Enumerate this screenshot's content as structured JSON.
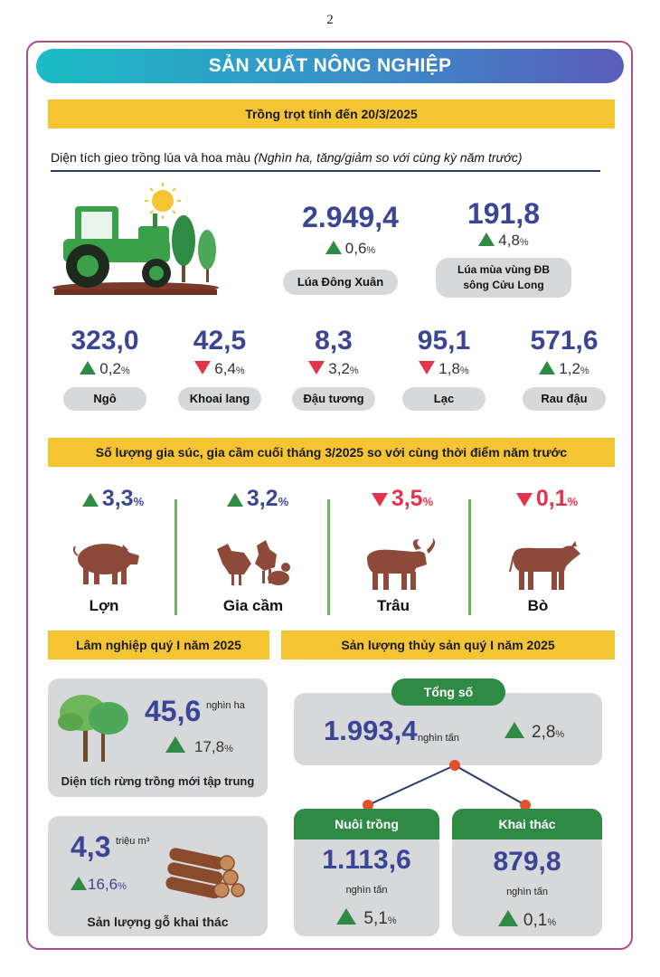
{
  "page_number": "2",
  "banner_title": "SẢN XUẤT NÔNG NGHIỆP",
  "crops": {
    "header": "Trồng trọt tính đến 20/3/2025",
    "subtitle_main": "Diện tích gieo trồng lúa và hoa màu",
    "subtitle_note": "(Nghìn ha, tăng/giảm so với cùng kỳ năm trước)",
    "rice_winter_spring": {
      "value": "2.949,4",
      "change": "0,6",
      "direction": "up",
      "label": "Lúa Đông Xuân"
    },
    "rice_mekong": {
      "value": "191,8",
      "change": "4,8",
      "direction": "up",
      "label_line1": "Lúa mùa vùng ĐB",
      "label_line2": "sông Cửu Long"
    },
    "items": [
      {
        "value": "323,0",
        "change": "0,2",
        "direction": "up",
        "label": "Ngô"
      },
      {
        "value": "42,5",
        "change": "6,4",
        "direction": "down",
        "label": "Khoai lang"
      },
      {
        "value": "8,3",
        "change": "3,2",
        "direction": "down",
        "label": "Đậu tương"
      },
      {
        "value": "95,1",
        "change": "1,8",
        "direction": "down",
        "label": "Lạc"
      },
      {
        "value": "571,6",
        "change": "1,2",
        "direction": "up",
        "label": "Rau đậu"
      }
    ],
    "pct_symbol": "%"
  },
  "livestock": {
    "header": "Số lượng gia súc, gia cầm cuối tháng 3/2025 so với cùng thời điểm năm trước",
    "items": [
      {
        "change": "3,3",
        "direction": "up",
        "label": "Lợn"
      },
      {
        "change": "3,2",
        "direction": "up",
        "label": "Gia cầm"
      },
      {
        "change": "3,5",
        "direction": "down",
        "label": "Trâu"
      },
      {
        "change": "0,1",
        "direction": "down",
        "label": "Bò"
      }
    ]
  },
  "forestry": {
    "header": "Lâm nghiệp quý I năm 2025",
    "planted": {
      "value": "45,6",
      "unit": "nghìn ha",
      "change": "17,8",
      "label": "Diện tích rừng trồng mới tập trung"
    },
    "timber": {
      "value": "4,3",
      "unit": "triệu m³",
      "change": "16,6",
      "label": "Sản lượng gỗ khai thác"
    }
  },
  "fishery": {
    "header": "Sản lượng thủy sản quý I năm 2025",
    "total": {
      "label": "Tổng số",
      "value": "1.993,4",
      "unit": "nghìn tấn",
      "change": "2,8"
    },
    "aquaculture": {
      "label": "Nuôi trồng",
      "value": "1.113,6",
      "unit": "nghìn tấn",
      "change": "5,1"
    },
    "capture": {
      "label": "Khai thác",
      "value": "879,8",
      "unit": "nghìn tấn",
      "change": "0,1"
    }
  },
  "colors": {
    "up": "#2f8a44",
    "down": "#e3344e",
    "number": "#3b4596",
    "yellow": "#f5c432",
    "green_tag": "#2f8a44"
  }
}
